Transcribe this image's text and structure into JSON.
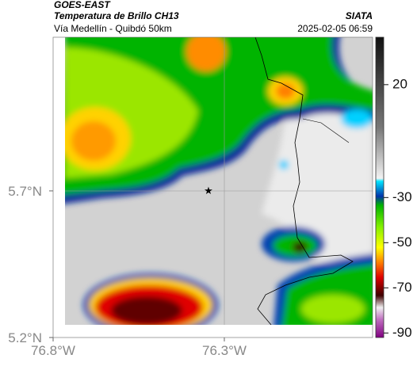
{
  "header": {
    "satellite": "GOES-EAST",
    "product": "Temperatura de Brillo CH13",
    "region": "Vía Medellín - Quibdó 50km",
    "agency": "SIATA",
    "datetime": "2025-02-05 06:59"
  },
  "map": {
    "xlim": [
      -76.8,
      -75.867
    ],
    "ylim": [
      5.2,
      6.224
    ],
    "xticks": [
      {
        "value": -76.8,
        "label": "76.8°W"
      },
      {
        "value": -76.3,
        "label": "76.3°W"
      }
    ],
    "yticks": [
      {
        "value": 5.7,
        "label": "5.7°N"
      },
      {
        "value": 5.2,
        "label": "5.2°N"
      }
    ]
  },
  "colorbar": {
    "ylim": [
      -92,
      41
    ],
    "yticks": [
      20,
      -30,
      -50,
      -70,
      -90
    ]
  }
}
